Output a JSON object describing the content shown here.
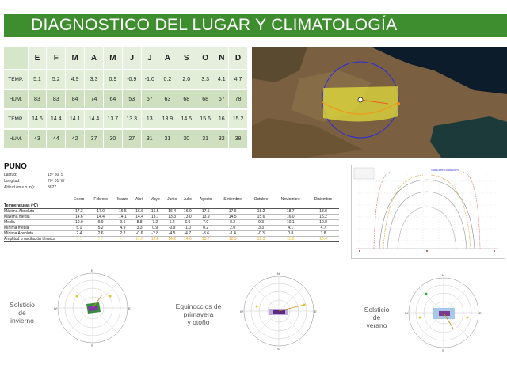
{
  "header": {
    "title": "DIAGNOSTICO DEL LUGAR Y CLIMATOLOGÍA"
  },
  "monthly_table": {
    "months": [
      "E",
      "F",
      "M",
      "A",
      "M",
      "J",
      "J",
      "A",
      "S",
      "O",
      "N",
      "D"
    ],
    "rows": [
      {
        "label": "TEMP.",
        "values": [
          "5.1",
          "5.2",
          "4.9",
          "3.3",
          "0.9",
          "-0.9",
          "-1.0",
          "0.2",
          "2.0",
          "3.3",
          "4.1",
          "4.7"
        ]
      },
      {
        "label": "HUM.",
        "values": [
          "83",
          "83",
          "84",
          "74",
          "64",
          "53",
          "57",
          "63",
          "68",
          "68",
          "67",
          "78"
        ]
      },
      {
        "label": "TEMP.",
        "values": [
          "14.6",
          "14.4",
          "14.1",
          "14.4",
          "13.7",
          "13.3",
          "13",
          "13.9",
          "14.5",
          "15.6",
          "16",
          "15.2"
        ]
      },
      {
        "label": "HUM.",
        "values": [
          "43",
          "44",
          "42",
          "37",
          "30",
          "27",
          "31",
          "31",
          "30",
          "31",
          "32",
          "38"
        ]
      }
    ]
  },
  "location": {
    "city": "PUNO",
    "latitude_label": "Latitud:",
    "latitude": "15º 50' S",
    "longitude_label": "Longitud:",
    "longitude": "70º 01' W",
    "altitude_label": "Altitud (m.s.n.m.):",
    "altitude": "3827"
  },
  "climate_table": {
    "months": [
      "Enero",
      "Febrero",
      "Marzo",
      "Abril",
      "Mayo",
      "Junio",
      "Julio",
      "Agosto",
      "Setiembre",
      "Octubre",
      "Noviembre",
      "Diciembre"
    ],
    "section": "Temperaturas (ºC)",
    "rows": [
      {
        "label": "Máxima Absoluta",
        "values": [
          "17.3",
          "17.0",
          "16.5",
          "16.6",
          "16.5",
          "16.4",
          "16.0",
          "17.5",
          "17.6",
          "18.2",
          "18.7",
          "18.0"
        ]
      },
      {
        "label": "Máxima media",
        "values": [
          "14.6",
          "14.4",
          "14.1",
          "14.4",
          "13.7",
          "13.3",
          "13.0",
          "13.9",
          "14.5",
          "15.6",
          "16.0",
          "15.2"
        ]
      },
      {
        "label": "Media",
        "values": [
          "10.0",
          "9.9",
          "9.6",
          "8.8",
          "7.2",
          "6.2",
          "6.0",
          "7.0",
          "8.2",
          "9.3",
          "10.1",
          "10.0"
        ]
      },
      {
        "label": "Mínima media",
        "values": [
          "5.1",
          "5.2",
          "4.9",
          "3.3",
          "0.9",
          "-0.9",
          "-1.0",
          "0.2",
          "2.0",
          "3.3",
          "4.1",
          "4.7"
        ]
      },
      {
        "label": "Mínima Absoluta",
        "values": [
          "2.4",
          "2.6",
          "2.2",
          "-0.6",
          "-2.8",
          "-4.5",
          "-4.7",
          "-3.6",
          "-1.4",
          "-0.3",
          "0.8",
          "1.8"
        ]
      },
      {
        "label": "Amplitud u oscilación térmica",
        "values": [
          "9.5",
          "9.2",
          "9.2",
          "11.0",
          "12.8",
          "14.2",
          "14.0",
          "13.7",
          "12.5",
          "12.3",
          "11.9",
          "10.4"
        ]
      }
    ]
  },
  "sun_chart": {
    "website": "SunEarthTools.com"
  },
  "diagrams": [
    {
      "label": "Solsticio\n de\ninvierno"
    },
    {
      "label": "Equinoccios de\nprimavera\ny otoño"
    },
    {
      "label": "Solsticio\nde\nverano"
    }
  ],
  "compass": {
    "n": "N",
    "s": "S",
    "e": "E",
    "w": "W"
  }
}
